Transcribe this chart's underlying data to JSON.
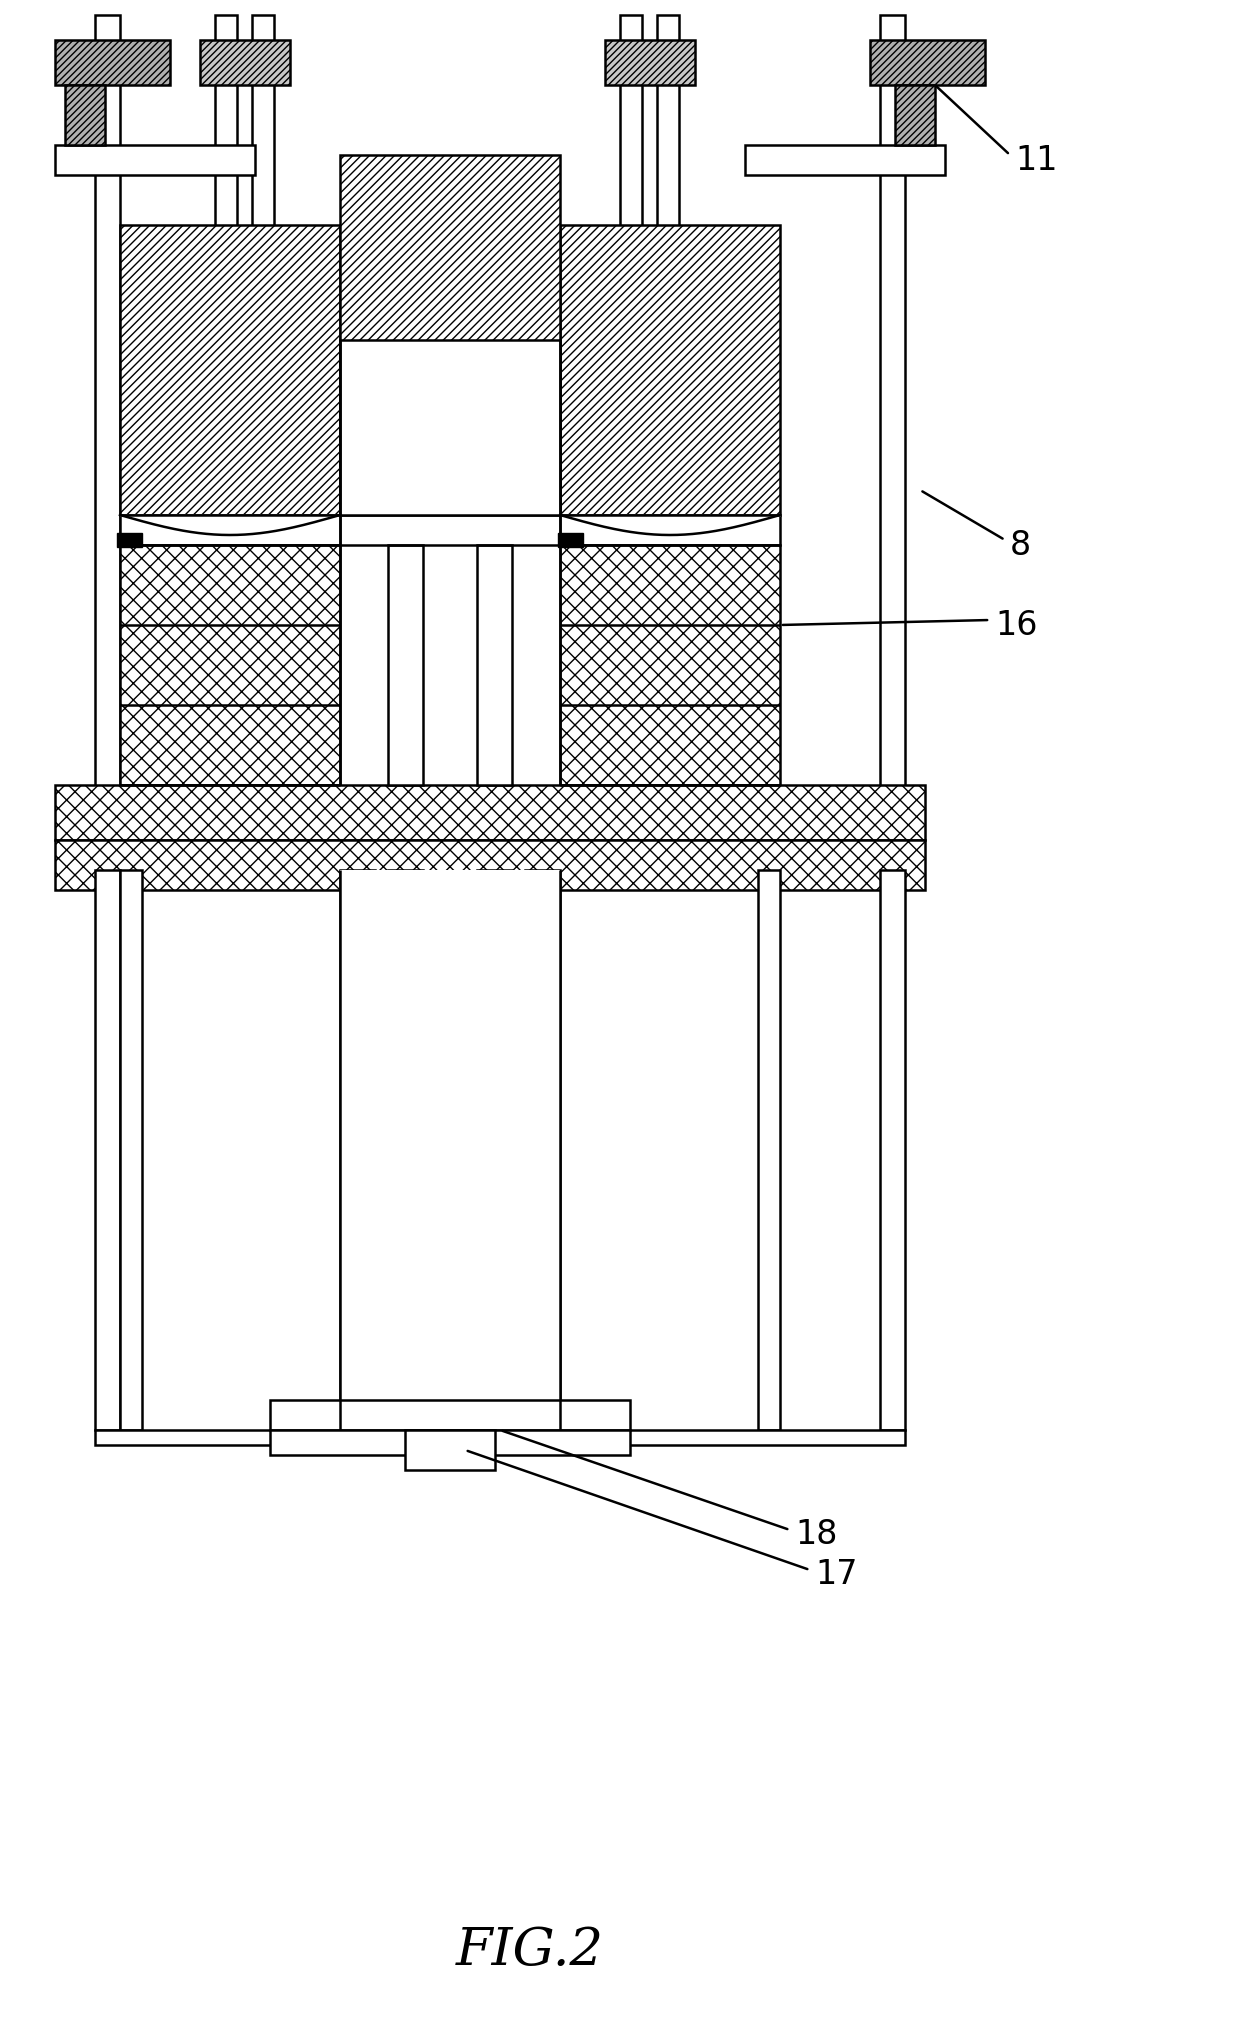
{
  "fig_width": 12.4,
  "fig_height": 20.23,
  "dpi": 100,
  "bg": "#ffffff",
  "lc": "#000000",
  "lw": 1.8
}
